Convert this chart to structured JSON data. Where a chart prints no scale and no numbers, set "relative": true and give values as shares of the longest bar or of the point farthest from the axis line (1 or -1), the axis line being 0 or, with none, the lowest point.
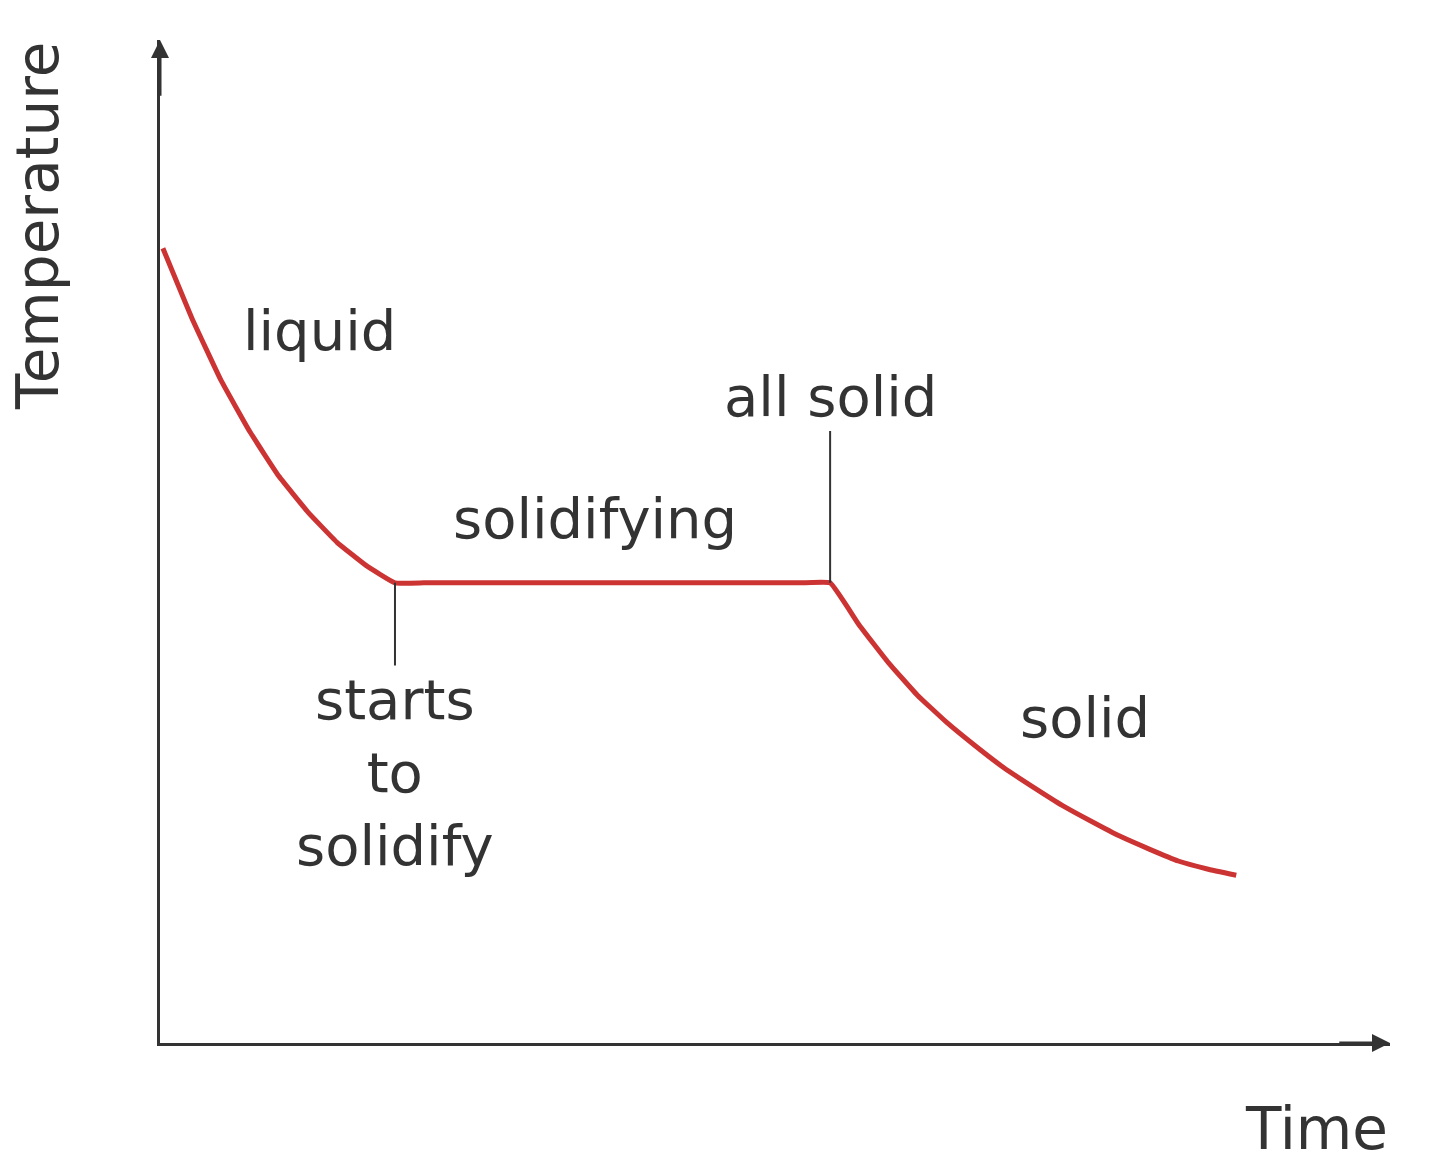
{
  "chart_data": {
    "type": "line",
    "relative": true,
    "xlabel": "Time",
    "ylabel": "Temperature",
    "categories": [
      null,
      null,
      null,
      null,
      null,
      null,
      null,
      null,
      null,
      null,
      null,
      null,
      null,
      null,
      null,
      null,
      null,
      null,
      null,
      null,
      null,
      null,
      null,
      null,
      null,
      null,
      null,
      null,
      null,
      null,
      null,
      null,
      null,
      null,
      null,
      null,
      null,
      null
    ],
    "series": [
      {
        "color": "#cc3333",
        "values": [
          1.0,
          0.912,
          0.834,
          0.769,
          0.713,
          0.668,
          0.63,
          0.601,
          0.579,
          0.579,
          0.579,
          0.579,
          0.579,
          0.579,
          0.579,
          0.579,
          0.579,
          0.579,
          0.579,
          0.579,
          0.579,
          0.579,
          0.579,
          0.579,
          0.526,
          0.479,
          0.438,
          0.404,
          0.374,
          0.346,
          0.322,
          0.299,
          0.279,
          0.26,
          0.244,
          0.229,
          0.219,
          0.211
        ]
      }
    ],
    "annotations": [
      "liquid",
      "solidifying",
      "all solid",
      "starts\nto\nsolidify",
      "solid"
    ],
    "marker": "none",
    "line_style": "solid"
  }
}
